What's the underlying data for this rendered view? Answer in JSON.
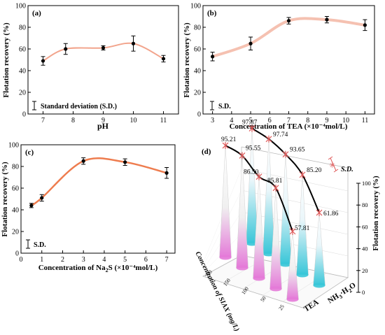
{
  "chart_data": [
    {
      "panel": "(a)",
      "type": "line",
      "xlabel": "pH",
      "ylabel": "Flotation recovery (%)",
      "xlim": [
        6.5,
        11.5
      ],
      "ylim": [
        0,
        100
      ],
      "xticks": [
        "7",
        "8",
        "9",
        "10",
        "11"
      ],
      "yticks": [
        "0",
        "20",
        "40",
        "60",
        "80",
        "100"
      ],
      "points": [
        {
          "x": 7,
          "y": 49,
          "err": 4
        },
        {
          "x": 7.75,
          "y": 60,
          "err": 5
        },
        {
          "x": 9,
          "y": 61,
          "err": 2
        },
        {
          "x": 10,
          "y": 65,
          "err": 7
        },
        {
          "x": 11,
          "y": 51,
          "err": 3
        }
      ],
      "fit_color": "#f2a48c",
      "legend": "Standard deviation (S.D.)",
      "legend_position": "bottom-left"
    },
    {
      "panel": "(b)",
      "type": "line",
      "xlabel": "Concentration of TEA (×10⁻⁴mol/L)",
      "ylabel": "Flotation recovery (%)",
      "xlim": [
        2.5,
        11.5
      ],
      "ylim": [
        0,
        100
      ],
      "xticks": [
        "3",
        "4",
        "5",
        "6",
        "7",
        "8",
        "9",
        "10",
        "11"
      ],
      "yticks": [
        "0",
        "20",
        "40",
        "60",
        "80",
        "100"
      ],
      "points": [
        {
          "x": 3,
          "y": 53,
          "err": 4
        },
        {
          "x": 5,
          "y": 65,
          "err": 6
        },
        {
          "x": 7,
          "y": 86,
          "err": 3
        },
        {
          "x": 9,
          "y": 87,
          "err": 3
        },
        {
          "x": 11,
          "y": 82,
          "err": 5
        }
      ],
      "fit_color": "#f3b6a3",
      "legend": "S.D.",
      "legend_position": "bottom-left"
    },
    {
      "panel": "(c)",
      "type": "line",
      "xlabel_main": "Concentration of Na",
      "xlabel_sub": "2",
      "xlabel_tail": "S (×10⁻⁴mol/L)",
      "ylabel": "Flotation recovery (%)",
      "xlim": [
        0,
        7.4
      ],
      "ylim": [
        0,
        100
      ],
      "xticks": [
        "0",
        "1",
        "2",
        "3",
        "4",
        "5",
        "6",
        "7"
      ],
      "yticks": [
        "0",
        "20",
        "40",
        "60",
        "80",
        "100"
      ],
      "points": [
        {
          "x": 0.5,
          "y": 44,
          "err": 2
        },
        {
          "x": 1,
          "y": 51,
          "err": 3
        },
        {
          "x": 3,
          "y": 85,
          "err": 3
        },
        {
          "x": 5,
          "y": 84,
          "err": 3
        },
        {
          "x": 7,
          "y": 74,
          "err": 5
        }
      ],
      "fit_color": "#ee7c4e",
      "legend": "S.D.",
      "legend_position": "bottom-left"
    },
    {
      "panel": "(d)",
      "type": "bar3d",
      "zlabel": "Flotation recovery (%)",
      "zticks": [
        "0",
        "20",
        "40",
        "60",
        "80",
        "100"
      ],
      "xlabel": "Concentration of SIAX (mg/L)",
      "xticks": [
        "200",
        "150",
        "100",
        "50",
        "25"
      ],
      "ylabel_main": "NH",
      "ylabel_sub": "3",
      "ylabel_tail": "·H",
      "ylabel_sub2": "2",
      "ylabel_tail2": "O",
      "ylabel2": "TEA",
      "legend": "S.D.",
      "series": [
        {
          "name": "TEA",
          "values": [
            95.21,
            95.55,
            86.5,
            85.81,
            57.81
          ]
        },
        {
          "name": "NH3·H2O",
          "values": [
            97.87,
            97.74,
            93.65,
            85.2,
            61.86
          ]
        }
      ]
    }
  ]
}
